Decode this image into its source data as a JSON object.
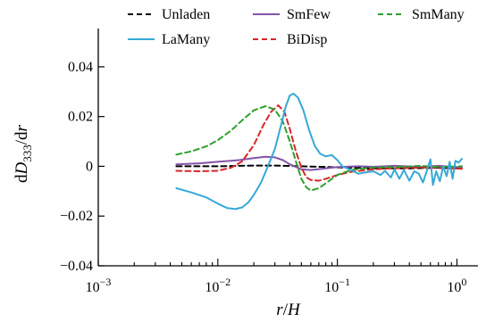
{
  "chart_data": {
    "type": "line",
    "xscale": "log",
    "xlim": [
      0.001,
      1.5
    ],
    "ylim": [
      -0.04,
      0.05
    ],
    "xticks": [
      {
        "value": 0.001,
        "base": "10",
        "exp": "−3"
      },
      {
        "value": 0.01,
        "base": "10",
        "exp": "−2"
      },
      {
        "value": 0.1,
        "base": "10",
        "exp": "−1"
      },
      {
        "value": 1,
        "base": "10",
        "exp": "0"
      }
    ],
    "yticks": [
      {
        "value": -0.04,
        "label": "−0.04"
      },
      {
        "value": -0.02,
        "label": "−0.02"
      },
      {
        "value": 0,
        "label": "0"
      },
      {
        "value": 0.02,
        "label": "0.02"
      },
      {
        "value": 0.04,
        "label": "0.04"
      }
    ],
    "xlabel": "r/H",
    "ylabel": "dD333/dr",
    "grid": false,
    "legend_position": "top",
    "series": [
      {
        "name": "Unladen",
        "color": "#000000",
        "dash": "dashed",
        "points": [
          [
            0.0045,
            0.0
          ],
          [
            0.01,
            0.0
          ],
          [
            0.02,
            0.0003
          ],
          [
            0.03,
            0.0003
          ],
          [
            0.05,
            0.0
          ],
          [
            0.1,
            -0.0004
          ],
          [
            0.2,
            -0.0008
          ],
          [
            0.4,
            -0.0008
          ],
          [
            0.7,
            -0.0006
          ],
          [
            1.1,
            -0.0008
          ]
        ]
      },
      {
        "name": "SmFew",
        "color": "#8454a8",
        "dash": "solid",
        "points": [
          [
            0.0045,
            0.0008
          ],
          [
            0.007,
            0.0012
          ],
          [
            0.01,
            0.0018
          ],
          [
            0.015,
            0.0025
          ],
          [
            0.02,
            0.0033
          ],
          [
            0.025,
            0.0038
          ],
          [
            0.03,
            0.0036
          ],
          [
            0.035,
            0.0025
          ],
          [
            0.04,
            0.0008
          ],
          [
            0.05,
            -0.0012
          ],
          [
            0.06,
            -0.0015
          ],
          [
            0.08,
            -0.0008
          ],
          [
            0.1,
            -0.0003
          ],
          [
            0.15,
            0.0
          ],
          [
            0.2,
            -0.0002
          ],
          [
            0.3,
            0.0002
          ],
          [
            0.5,
            -0.0003
          ],
          [
            0.7,
            0.0002
          ],
          [
            1.1,
            -0.0005
          ]
        ]
      },
      {
        "name": "SmMany",
        "color": "#2ca02c",
        "dash": "dashed",
        "points": [
          [
            0.0045,
            0.0047
          ],
          [
            0.006,
            0.006
          ],
          [
            0.008,
            0.008
          ],
          [
            0.01,
            0.0105
          ],
          [
            0.013,
            0.0145
          ],
          [
            0.016,
            0.0185
          ],
          [
            0.02,
            0.0225
          ],
          [
            0.025,
            0.0242
          ],
          [
            0.03,
            0.0228
          ],
          [
            0.035,
            0.018
          ],
          [
            0.04,
            0.01
          ],
          [
            0.045,
            0.002
          ],
          [
            0.05,
            -0.005
          ],
          [
            0.055,
            -0.0085
          ],
          [
            0.06,
            -0.0097
          ],
          [
            0.07,
            -0.0088
          ],
          [
            0.08,
            -0.0068
          ],
          [
            0.1,
            -0.0035
          ],
          [
            0.13,
            -0.0015
          ],
          [
            0.2,
            -0.0005
          ],
          [
            0.3,
            -0.0003
          ],
          [
            0.5,
            0.0002
          ],
          [
            0.7,
            -0.0003
          ],
          [
            1.1,
            0.0
          ]
        ]
      },
      {
        "name": "LaMany",
        "color": "#35a9d8",
        "dash": "solid",
        "points": [
          [
            0.0045,
            -0.0088
          ],
          [
            0.006,
            -0.0105
          ],
          [
            0.008,
            -0.0125
          ],
          [
            0.01,
            -0.015
          ],
          [
            0.012,
            -0.0168
          ],
          [
            0.014,
            -0.0172
          ],
          [
            0.016,
            -0.0165
          ],
          [
            0.018,
            -0.0145
          ],
          [
            0.02,
            -0.0115
          ],
          [
            0.023,
            -0.0065
          ],
          [
            0.026,
            -0.0005
          ],
          [
            0.03,
            0.007
          ],
          [
            0.034,
            0.017
          ],
          [
            0.037,
            0.024
          ],
          [
            0.04,
            0.0285
          ],
          [
            0.043,
            0.0292
          ],
          [
            0.047,
            0.0275
          ],
          [
            0.052,
            0.0225
          ],
          [
            0.058,
            0.0145
          ],
          [
            0.065,
            0.008
          ],
          [
            0.072,
            0.005
          ],
          [
            0.08,
            0.004
          ],
          [
            0.09,
            0.0045
          ],
          [
            0.1,
            0.0025
          ],
          [
            0.11,
            0.0
          ],
          [
            0.13,
            -0.0015
          ],
          [
            0.15,
            -0.003
          ],
          [
            0.17,
            -0.0025
          ],
          [
            0.2,
            -0.002
          ],
          [
            0.23,
            -0.0035
          ],
          [
            0.25,
            -0.0018
          ],
          [
            0.28,
            -0.0045
          ],
          [
            0.3,
            -0.0012
          ],
          [
            0.33,
            -0.005
          ],
          [
            0.36,
            -0.0015
          ],
          [
            0.4,
            -0.0058
          ],
          [
            0.44,
            -0.002
          ],
          [
            0.48,
            -0.003
          ],
          [
            0.52,
            -0.0065
          ],
          [
            0.55,
            -0.003
          ],
          [
            0.6,
            0.0028
          ],
          [
            0.63,
            -0.0075
          ],
          [
            0.67,
            -0.002
          ],
          [
            0.72,
            -0.006
          ],
          [
            0.77,
            0.0
          ],
          [
            0.82,
            -0.004
          ],
          [
            0.87,
            0.0018
          ],
          [
            0.92,
            -0.005
          ],
          [
            0.97,
            0.0022
          ],
          [
            1.03,
            0.0015
          ],
          [
            1.1,
            0.003
          ]
        ]
      },
      {
        "name": "BiDisp",
        "color": "#d62728",
        "dash": "dashed",
        "points": [
          [
            0.0045,
            -0.0018
          ],
          [
            0.007,
            -0.002
          ],
          [
            0.01,
            -0.0018
          ],
          [
            0.013,
            -0.0005
          ],
          [
            0.016,
            0.002
          ],
          [
            0.02,
            0.0085
          ],
          [
            0.024,
            0.0165
          ],
          [
            0.028,
            0.022
          ],
          [
            0.032,
            0.0245
          ],
          [
            0.036,
            0.022
          ],
          [
            0.04,
            0.015
          ],
          [
            0.045,
            0.006
          ],
          [
            0.05,
            -0.0005
          ],
          [
            0.055,
            -0.0045
          ],
          [
            0.06,
            -0.0055
          ],
          [
            0.07,
            -0.0058
          ],
          [
            0.08,
            -0.005
          ],
          [
            0.1,
            -0.0035
          ],
          [
            0.13,
            -0.0022
          ],
          [
            0.2,
            -0.0012
          ],
          [
            0.3,
            -0.0008
          ],
          [
            0.5,
            -0.0005
          ],
          [
            0.8,
            -0.0008
          ],
          [
            1.1,
            -0.001
          ]
        ]
      }
    ]
  }
}
